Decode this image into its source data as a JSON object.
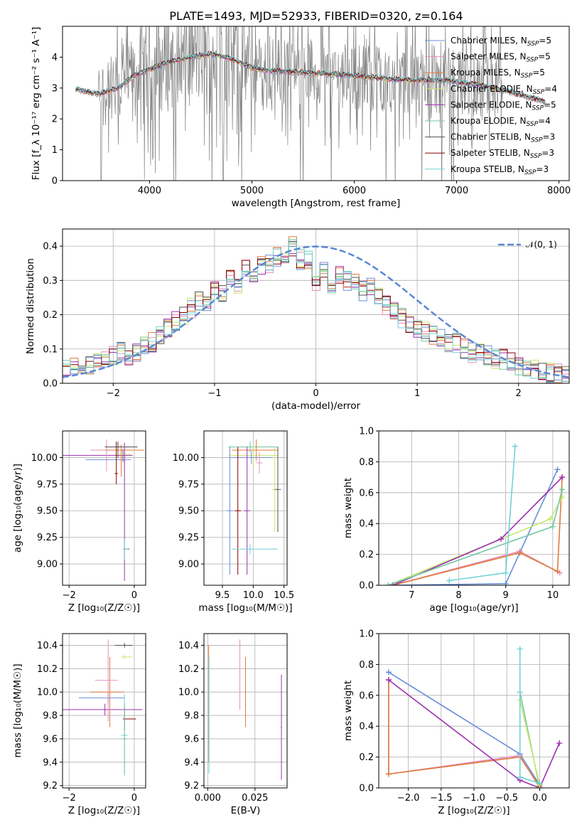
{
  "figure": {
    "title": "PLATE=1493, MJD=52933, FIBERID=0320, z=0.164"
  },
  "colors": {
    "model_colors": [
      "#6a8fd8",
      "#e68fc0",
      "#e07b39",
      "#c8e86e",
      "#9b30b0",
      "#74c7a0",
      "#505050",
      "#8b0000",
      "#6fd3d6"
    ],
    "data_gray": "#808080",
    "normal": "#5b87d3",
    "grid": "#b0b0b0"
  },
  "chart_data": [
    {
      "id": "spectrum",
      "type": "line",
      "xlabel": "wavelength [Angstrom, rest frame]",
      "ylabel": "Flux [f_λ 10⁻¹⁷ erg cm⁻² s⁻¹ A⁻¹]",
      "xlim": [
        3150,
        8100
      ],
      "ylim": [
        0,
        5
      ],
      "xticks": [
        4000,
        5000,
        6000,
        7000,
        8000
      ],
      "yticks": [
        0,
        1,
        2,
        3,
        4
      ],
      "grid": false,
      "legend_placement": "top-right",
      "continuum": [
        [
          3280,
          2.95
        ],
        [
          3500,
          2.8
        ],
        [
          3700,
          3.0
        ],
        [
          3850,
          3.4
        ],
        [
          4000,
          3.6
        ],
        [
          4200,
          3.85
        ],
        [
          4400,
          4.0
        ],
        [
          4600,
          4.1
        ],
        [
          4800,
          3.95
        ],
        [
          5000,
          3.65
        ],
        [
          5200,
          3.55
        ],
        [
          5500,
          3.5
        ],
        [
          5800,
          3.45
        ],
        [
          6000,
          3.4
        ],
        [
          6300,
          3.3
        ],
        [
          6600,
          3.25
        ],
        [
          6900,
          3.25
        ],
        [
          7200,
          3.1
        ],
        [
          7500,
          2.9
        ],
        [
          7700,
          2.7
        ],
        [
          7870,
          2.55
        ]
      ],
      "data_noise_region": [
        3500,
        7450
      ],
      "series": [
        {
          "name": "Chabrier MILES",
          "nssp": 5
        },
        {
          "name": "Salpeter MILES",
          "nssp": 5
        },
        {
          "name": "Kroupa MILES",
          "nssp": 5
        },
        {
          "name": "Chabrier ELODIE",
          "nssp": 4
        },
        {
          "name": "Salpeter ELODIE",
          "nssp": 5
        },
        {
          "name": "Kroupa ELODIE",
          "nssp": 4
        },
        {
          "name": "Chabrier STELIB",
          "nssp": 3
        },
        {
          "name": "Salpeter STELIB",
          "nssp": 3
        },
        {
          "name": "Kroupa STELIB",
          "nssp": 3
        }
      ]
    },
    {
      "id": "residuals",
      "type": "line",
      "xlabel": "(data-model)/error",
      "ylabel": "Normed distribution",
      "xlim": [
        -2.5,
        2.5
      ],
      "ylim": [
        0,
        0.45
      ],
      "xticks": [
        -2,
        -1,
        0,
        1,
        2
      ],
      "yticks": [
        0.0,
        0.1,
        0.2,
        0.3,
        0.4
      ],
      "grid": true,
      "legend_placement": "top-right",
      "normal_label": "𝒩(0, 1)",
      "bin_width": 0.1,
      "hist": [
        0.04,
        0.05,
        0.06,
        0.05,
        0.06,
        0.07,
        0.08,
        0.09,
        0.08,
        0.09,
        0.11,
        0.12,
        0.14,
        0.16,
        0.18,
        0.2,
        0.22,
        0.24,
        0.24,
        0.27,
        0.26,
        0.3,
        0.29,
        0.33,
        0.32,
        0.34,
        0.35,
        0.37,
        0.35,
        0.4,
        0.36,
        0.36,
        0.3,
        0.33,
        0.28,
        0.32,
        0.3,
        0.29,
        0.27,
        0.28,
        0.25,
        0.23,
        0.21,
        0.19,
        0.17,
        0.16,
        0.15,
        0.14,
        0.13,
        0.12,
        0.12,
        0.1,
        0.09,
        0.09,
        0.08,
        0.07,
        0.07,
        0.06,
        0.05,
        0.05,
        0.04,
        0.04,
        0.03,
        0.03,
        0.03
      ]
    },
    {
      "id": "z-age",
      "type": "scatter",
      "xlabel": "Z [log₁₀(Z/Z☉)]",
      "ylabel": "age  [log₁₀(age/yr)]",
      "xlim": [
        -2.2,
        0.35
      ],
      "ylim": [
        8.8,
        10.25
      ],
      "xticks": [
        -2,
        0
      ],
      "yticks": [
        9.0,
        9.25,
        9.5,
        9.75,
        10.0
      ],
      "grid": true,
      "errorbars": [
        {
          "x": -0.35,
          "xerr": [
            1.85,
            0.3
          ],
          "y": 10.02,
          "yerr": [
            0.06,
            0.06
          ],
          "c": 4
        },
        {
          "x": -0.85,
          "xerr": [
            0.5,
            0.6
          ],
          "y": 10.07,
          "yerr": [
            0.2,
            0.1
          ],
          "c": 1
        },
        {
          "x": -0.3,
          "xerr": [
            1.2,
            0.2
          ],
          "y": 9.98,
          "yerr": [
            0.05,
            0.05
          ],
          "c": 0
        },
        {
          "x": -0.4,
          "xerr": [
            0.5,
            0.7
          ],
          "y": 10.07,
          "yerr": [
            0.25,
            0.05
          ],
          "c": 2
        },
        {
          "x": -0.5,
          "xerr": [
            0.4,
            0.6
          ],
          "y": 10.1,
          "yerr": [
            0.1,
            0.05
          ],
          "c": 6
        },
        {
          "x": -0.3,
          "xerr": [
            0.3,
            0.2
          ],
          "y": 10.03,
          "yerr": [
            0.1,
            0.1
          ],
          "c": 3
        },
        {
          "x": -0.3,
          "xerr": [
            0.05,
            0.15
          ],
          "y": 9.14,
          "yerr": [
            0.3,
            1.0
          ],
          "c": 4
        },
        {
          "x": -0.3,
          "xerr": [
            0.05,
            0.1
          ],
          "y": 9.14,
          "yerr": [
            0.1,
            0.1
          ],
          "c": 8
        },
        {
          "x": -0.55,
          "xerr": [
            0.05,
            0.05
          ],
          "y": 9.85,
          "yerr": [
            0.1,
            0.3
          ],
          "c": 7
        }
      ]
    },
    {
      "id": "mass-age",
      "type": "scatter",
      "xlabel": "mass [log₁₀(M/M☉)]",
      "ylabel": "",
      "xlim": [
        9.2,
        10.55
      ],
      "ylim": [
        8.8,
        10.25
      ],
      "xticks": [
        9.5,
        10.0,
        10.5
      ],
      "yticks": [
        9.0,
        9.25,
        9.5,
        9.75,
        10.0
      ],
      "grid": true,
      "errorbars": [
        {
          "x": 9.95,
          "xerr": [
            0.35,
            0.45
          ],
          "y": 10.1,
          "yerr": [
            0.05,
            0.05
          ],
          "c": 5
        },
        {
          "x": 10.0,
          "xerr": [
            0.4,
            0.4
          ],
          "y": 10.02,
          "yerr": [
            0.1,
            0.1
          ],
          "c": 3
        },
        {
          "x": 10.05,
          "xerr": [
            0.4,
            0.35
          ],
          "y": 10.07,
          "yerr": [
            0.1,
            0.1
          ],
          "c": 2
        },
        {
          "x": 9.97,
          "xerr": [
            0.35,
            0.35
          ],
          "y": 10.0,
          "yerr": [
            0.06,
            0.06
          ],
          "c": 0
        },
        {
          "x": 10.35,
          "xerr": [
            0.05,
            0.05
          ],
          "y": 9.7,
          "yerr": [
            0.4,
            0.4
          ],
          "c": 3
        },
        {
          "x": 10.4,
          "xerr": [
            0.05,
            0.05
          ],
          "y": 9.7,
          "yerr": [
            0.4,
            0.4
          ],
          "c": 6
        },
        {
          "x": 9.62,
          "xerr": [
            0.05,
            0.05
          ],
          "y": 9.5,
          "yerr": [
            0.6,
            0.6
          ],
          "c": 0
        },
        {
          "x": 9.75,
          "xerr": [
            0.05,
            0.05
          ],
          "y": 9.5,
          "yerr": [
            0.6,
            0.6
          ],
          "c": 7
        },
        {
          "x": 9.9,
          "xerr": [
            0.05,
            0.05
          ],
          "y": 9.5,
          "yerr": [
            0.6,
            0.6
          ],
          "c": 4
        },
        {
          "x": 10.1,
          "xerr": [
            0.05,
            0.05
          ],
          "y": 9.95,
          "yerr": [
            0.1,
            0.1
          ],
          "c": 1
        },
        {
          "x": 9.95,
          "xerr": [
            0.3,
            0.45
          ],
          "y": 9.14,
          "yerr": [
            0.05,
            0.05
          ],
          "c": 8
        }
      ]
    },
    {
      "id": "age-weight",
      "type": "line",
      "xlabel": "age  [log₁₀(age/yr)]",
      "ylabel": "mass weight",
      "xlim": [
        6.3,
        10.35
      ],
      "ylim": [
        0,
        1
      ],
      "xticks": [
        7,
        8,
        9,
        10
      ],
      "yticks": [
        0.0,
        0.2,
        0.4,
        0.6,
        0.8,
        1.0
      ],
      "grid": true,
      "series": [
        {
          "c": 0,
          "points": [
            [
              6.6,
              0.0
            ],
            [
              9.0,
              0.01
            ],
            [
              10.1,
              0.75
            ]
          ]
        },
        {
          "c": 1,
          "points": [
            [
              6.6,
              0.0
            ],
            [
              9.3,
              0.22
            ],
            [
              10.15,
              0.08
            ]
          ]
        },
        {
          "c": 2,
          "points": [
            [
              6.6,
              0.0
            ],
            [
              9.3,
              0.21
            ],
            [
              10.1,
              0.09
            ],
            [
              10.2,
              0.7
            ]
          ]
        },
        {
          "c": 3,
          "points": [
            [
              6.5,
              0.0
            ],
            [
              9.95,
              0.43
            ],
            [
              10.2,
              0.57
            ]
          ]
        },
        {
          "c": 4,
          "points": [
            [
              6.6,
              0.0
            ],
            [
              8.9,
              0.3
            ],
            [
              10.2,
              0.7
            ]
          ]
        },
        {
          "c": 5,
          "points": [
            [
              6.5,
              0.0
            ],
            [
              10.0,
              0.38
            ],
            [
              10.2,
              0.62
            ]
          ]
        },
        {
          "c": 8,
          "points": [
            [
              7.8,
              0.03
            ],
            [
              9.0,
              0.08
            ],
            [
              9.2,
              0.9
            ]
          ]
        }
      ]
    },
    {
      "id": "z-mass",
      "type": "scatter",
      "xlabel": "Z [log₁₀(Z/Z☉)]",
      "ylabel": "mass [log₁₀(M/M☉)]",
      "xlim": [
        -2.2,
        0.35
      ],
      "ylim": [
        9.18,
        10.5
      ],
      "xticks": [
        -2,
        0
      ],
      "yticks": [
        9.2,
        9.4,
        9.6,
        9.8,
        10.0,
        10.2,
        10.4
      ],
      "grid": true,
      "errorbars": [
        {
          "x": -0.9,
          "xerr": [
            1.35,
            1.15
          ],
          "y": 9.85,
          "yerr": [
            0.05,
            0.05
          ],
          "c": 4
        },
        {
          "x": -0.8,
          "xerr": [
            0.9,
            0.5
          ],
          "y": 9.95,
          "yerr": [
            0.05,
            0.05
          ],
          "c": 0
        },
        {
          "x": -0.75,
          "xerr": [
            0.6,
            0.45
          ],
          "y": 10.0,
          "yerr": [
            0.3,
            0.3
          ],
          "c": 2
        },
        {
          "x": -0.8,
          "xerr": [
            0.4,
            0.3
          ],
          "y": 10.1,
          "yerr": [
            0.35,
            0.35
          ],
          "c": 1
        },
        {
          "x": -0.3,
          "xerr": [
            0.3,
            0.25
          ],
          "y": 10.4,
          "yerr": [
            0.02,
            0.02
          ],
          "c": 6
        },
        {
          "x": -0.3,
          "xerr": [
            0.1,
            0.25
          ],
          "y": 10.3,
          "yerr": [
            0.02,
            0.02
          ],
          "c": 3
        },
        {
          "x": -0.3,
          "xerr": [
            0.05,
            0.35
          ],
          "y": 9.77,
          "yerr": [
            0.1,
            0.1
          ],
          "c": 7
        },
        {
          "x": -0.3,
          "xerr": [
            0.1,
            0.1
          ],
          "y": 9.63,
          "yerr": [
            0.35,
            0.35
          ],
          "c": 8
        },
        {
          "x": -0.3,
          "xerr": [
            0.1,
            0.1
          ],
          "y": 9.6,
          "yerr": [
            0.3,
            0.3
          ],
          "c": 5
        }
      ]
    },
    {
      "id": "ebv-mass",
      "type": "scatter",
      "xlabel": "E(B-V)",
      "ylabel": "",
      "xlim": [
        -0.002,
        0.042
      ],
      "ylim": [
        9.18,
        10.5
      ],
      "xticks": [
        0.0,
        0.025
      ],
      "yticks": [
        9.2,
        9.4,
        9.6,
        9.8,
        10.0,
        10.2,
        10.4
      ],
      "grid": true,
      "errorbars": [
        {
          "x": 0.0005,
          "xerr": [
            0.0003,
            0.0003
          ],
          "y": 9.9,
          "yerr": [
            0.5,
            0.5
          ],
          "c": 2
        },
        {
          "x": 0.0007,
          "xerr": [
            0.0003,
            0.0003
          ],
          "y": 9.8,
          "yerr": [
            0.5,
            0.5
          ],
          "c": 8
        },
        {
          "x": 0.017,
          "xerr": [
            0.0003,
            0.0003
          ],
          "y": 10.15,
          "yerr": [
            0.3,
            0.3
          ],
          "c": 1
        },
        {
          "x": 0.02,
          "xerr": [
            0.0003,
            0.0003
          ],
          "y": 10.0,
          "yerr": [
            0.3,
            0.3
          ],
          "c": 2
        },
        {
          "x": 0.039,
          "xerr": [
            0.0003,
            0.0003
          ],
          "y": 9.7,
          "yerr": [
            0.45,
            0.45
          ],
          "c": 4
        }
      ]
    },
    {
      "id": "z-weight",
      "type": "line",
      "xlabel": "Z [log₁₀(Z/Z☉)]",
      "ylabel": "mass weight",
      "xlim": [
        -2.45,
        0.45
      ],
      "ylim": [
        0,
        1
      ],
      "xticks": [
        -2.0,
        -1.5,
        -1.0,
        -0.5,
        0.0
      ],
      "yticks": [
        0.0,
        0.2,
        0.4,
        0.6,
        0.8,
        1.0
      ],
      "grid": true,
      "series": [
        {
          "c": 0,
          "points": [
            [
              -2.3,
              0.75
            ],
            [
              -0.3,
              0.22
            ],
            [
              0.0,
              0.02
            ]
          ]
        },
        {
          "c": 1,
          "points": [
            [
              -2.3,
              0.7
            ],
            [
              -2.3,
              0.09
            ],
            [
              -0.3,
              0.21
            ],
            [
              0.0,
              0.0
            ]
          ]
        },
        {
          "c": 2,
          "points": [
            [
              -2.3,
              0.7
            ],
            [
              -2.3,
              0.09
            ],
            [
              -0.3,
              0.2
            ],
            [
              0.0,
              0.01
            ]
          ]
        },
        {
          "c": 4,
          "points": [
            [
              -2.3,
              0.7
            ],
            [
              -0.3,
              0.05
            ],
            [
              0.0,
              0.0
            ],
            [
              0.3,
              0.29
            ]
          ]
        },
        {
          "c": 5,
          "points": [
            [
              -0.3,
              0.62
            ],
            [
              0.0,
              0.0
            ]
          ]
        },
        {
          "c": 3,
          "points": [
            [
              -0.3,
              0.57
            ],
            [
              0.0,
              0.02
            ]
          ]
        },
        {
          "c": 8,
          "points": [
            [
              -0.3,
              0.9
            ],
            [
              -0.3,
              0.07
            ],
            [
              0.0,
              0.03
            ]
          ]
        }
      ]
    }
  ]
}
